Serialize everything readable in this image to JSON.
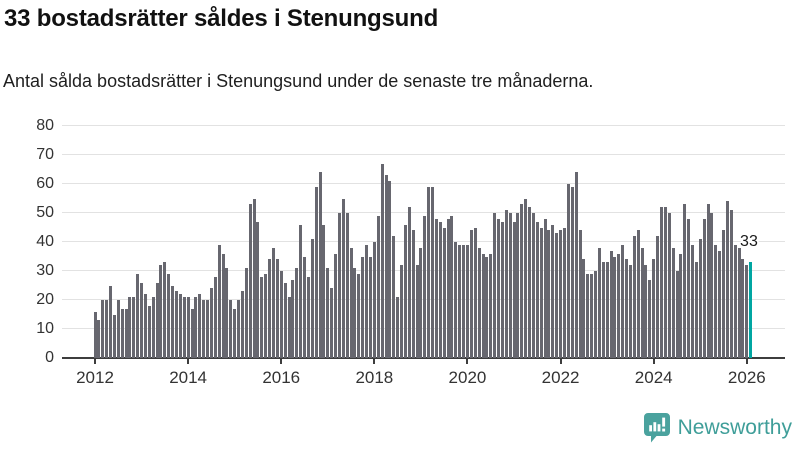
{
  "header": {
    "title": "33 bostadsrätter såldes i Stenungsund",
    "subtitle": "Antal sålda bostadsrätter i Stenungsund under de senaste tre månaderna."
  },
  "chart_data": {
    "type": "bar",
    "title": "33 bostadsrätter såldes i Stenungsund",
    "subtitle": "Antal sålda bostadsrätter i Stenungsund under de senaste tre månaderna.",
    "x_start": "2012",
    "x_end": "2026",
    "frequency": "monthly",
    "categories_note": "rolling three-month sales totals per month, Jan 2012 - Feb 2026",
    "values": [
      16,
      13,
      20,
      20,
      25,
      15,
      20,
      17,
      17,
      21,
      21,
      29,
      26,
      22,
      18,
      21,
      26,
      32,
      33,
      29,
      25,
      23,
      22,
      21,
      21,
      17,
      21,
      22,
      20,
      20,
      24,
      28,
      39,
      36,
      31,
      20,
      17,
      20,
      23,
      31,
      53,
      55,
      47,
      28,
      29,
      34,
      38,
      34,
      30,
      26,
      21,
      27,
      31,
      46,
      35,
      28,
      41,
      59,
      64,
      46,
      31,
      24,
      36,
      50,
      55,
      50,
      38,
      31,
      29,
      35,
      39,
      35,
      40,
      49,
      67,
      63,
      61,
      42,
      21,
      32,
      46,
      52,
      44,
      32,
      38,
      49,
      59,
      59,
      48,
      47,
      45,
      48,
      49,
      40,
      39,
      39,
      39,
      44,
      45,
      38,
      36,
      35,
      36,
      50,
      48,
      47,
      51,
      50,
      47,
      50,
      53,
      55,
      52,
      50,
      47,
      45,
      48,
      44,
      46,
      43,
      44,
      45,
      60,
      59,
      64,
      44,
      34,
      29,
      29,
      30,
      38,
      33,
      33,
      37,
      35,
      36,
      39,
      34,
      32,
      42,
      44,
      38,
      32,
      27,
      34,
      42,
      52,
      52,
      50,
      38,
      30,
      36,
      53,
      48,
      39,
      33,
      41,
      48,
      53,
      50,
      39,
      37,
      44,
      54,
      51,
      39,
      38,
      34,
      32,
      33
    ],
    "highlight_last": true,
    "last_value_label": "33",
    "y_ticks": [
      0,
      10,
      20,
      30,
      40,
      50,
      60,
      70,
      80
    ],
    "ylim": [
      0,
      80
    ],
    "x_tick_labels": [
      "2012",
      "2014",
      "2016",
      "2018",
      "2020",
      "2022",
      "2024",
      "2026"
    ],
    "bar_color": "#67676f",
    "highlight_color": "#00a6a2",
    "grid": "on",
    "legend": "none"
  },
  "footer": {
    "brand": "Newsworthy",
    "brand_color": "#3f9e99",
    "logo_icon": "bar-chart-speech-bubble-icon"
  }
}
